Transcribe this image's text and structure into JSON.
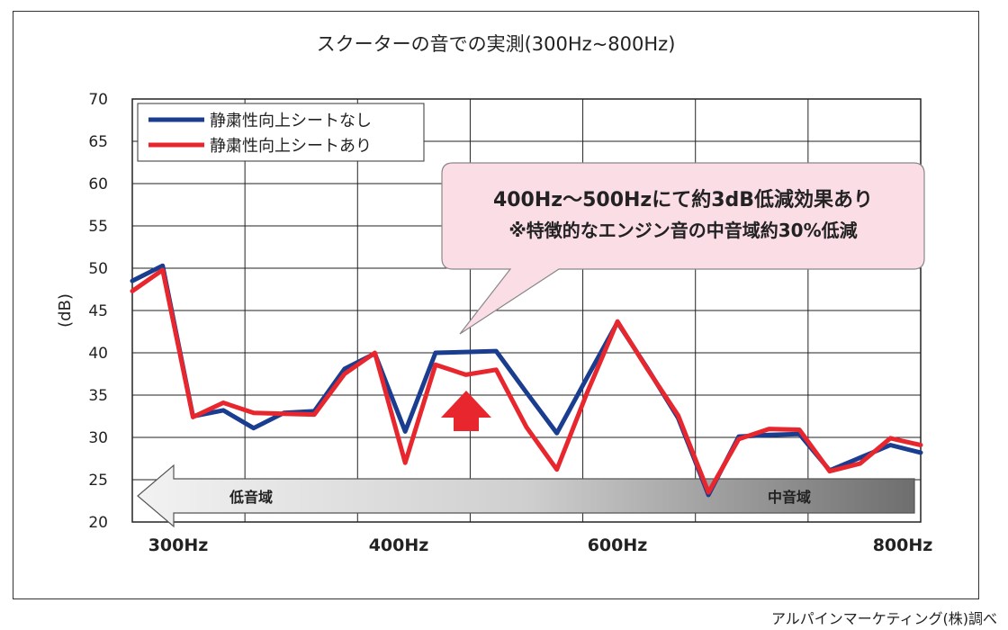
{
  "chart_data": {
    "type": "line",
    "title": "スクーターの音での実測(300Hz~800Hz)",
    "ylabel": "(dB)",
    "ylim": [
      20,
      70
    ],
    "yticks": [
      20,
      25,
      30,
      35,
      40,
      45,
      50,
      55,
      60,
      65,
      70
    ],
    "xtick_labels": [
      "300Hz",
      "400Hz",
      "600Hz",
      "800Hz"
    ],
    "grid": true,
    "legend_position": "top-left",
    "series": [
      {
        "name": "静粛性向上シートなし",
        "color": "#1a3d8f",
        "values": [
          48.5,
          50.3,
          32.5,
          33.2,
          31.1,
          32.9,
          33.1,
          38.1,
          39.9,
          30.7,
          40.0,
          40.1,
          40.2,
          35.3,
          30.5,
          37.1,
          43.6,
          38.1,
          32.3,
          23.2,
          30.1,
          30.3,
          30.4,
          26.1,
          27.6,
          29.1,
          28.2
        ]
      },
      {
        "name": "静粛性向上シートあり",
        "color": "#e8262e",
        "values": [
          47.3,
          49.8,
          32.4,
          34.1,
          32.9,
          32.8,
          32.7,
          37.5,
          40.0,
          27.0,
          38.6,
          37.4,
          38.0,
          31.2,
          26.2,
          35.3,
          43.7,
          38.0,
          32.6,
          23.5,
          29.8,
          31.0,
          30.9,
          26.0,
          26.9,
          29.9,
          29.1
        ]
      }
    ],
    "annotation": {
      "line1": "400Hz〜500Hzにて約3dB低減効果あり",
      "line2": "※特徴的なエンジン音の中音域約30%低減"
    },
    "range_arrow": {
      "low_label": "低音域",
      "mid_label": "中音域"
    }
  },
  "footer": {
    "credit": "アルパインマーケティング(株)調べ"
  }
}
